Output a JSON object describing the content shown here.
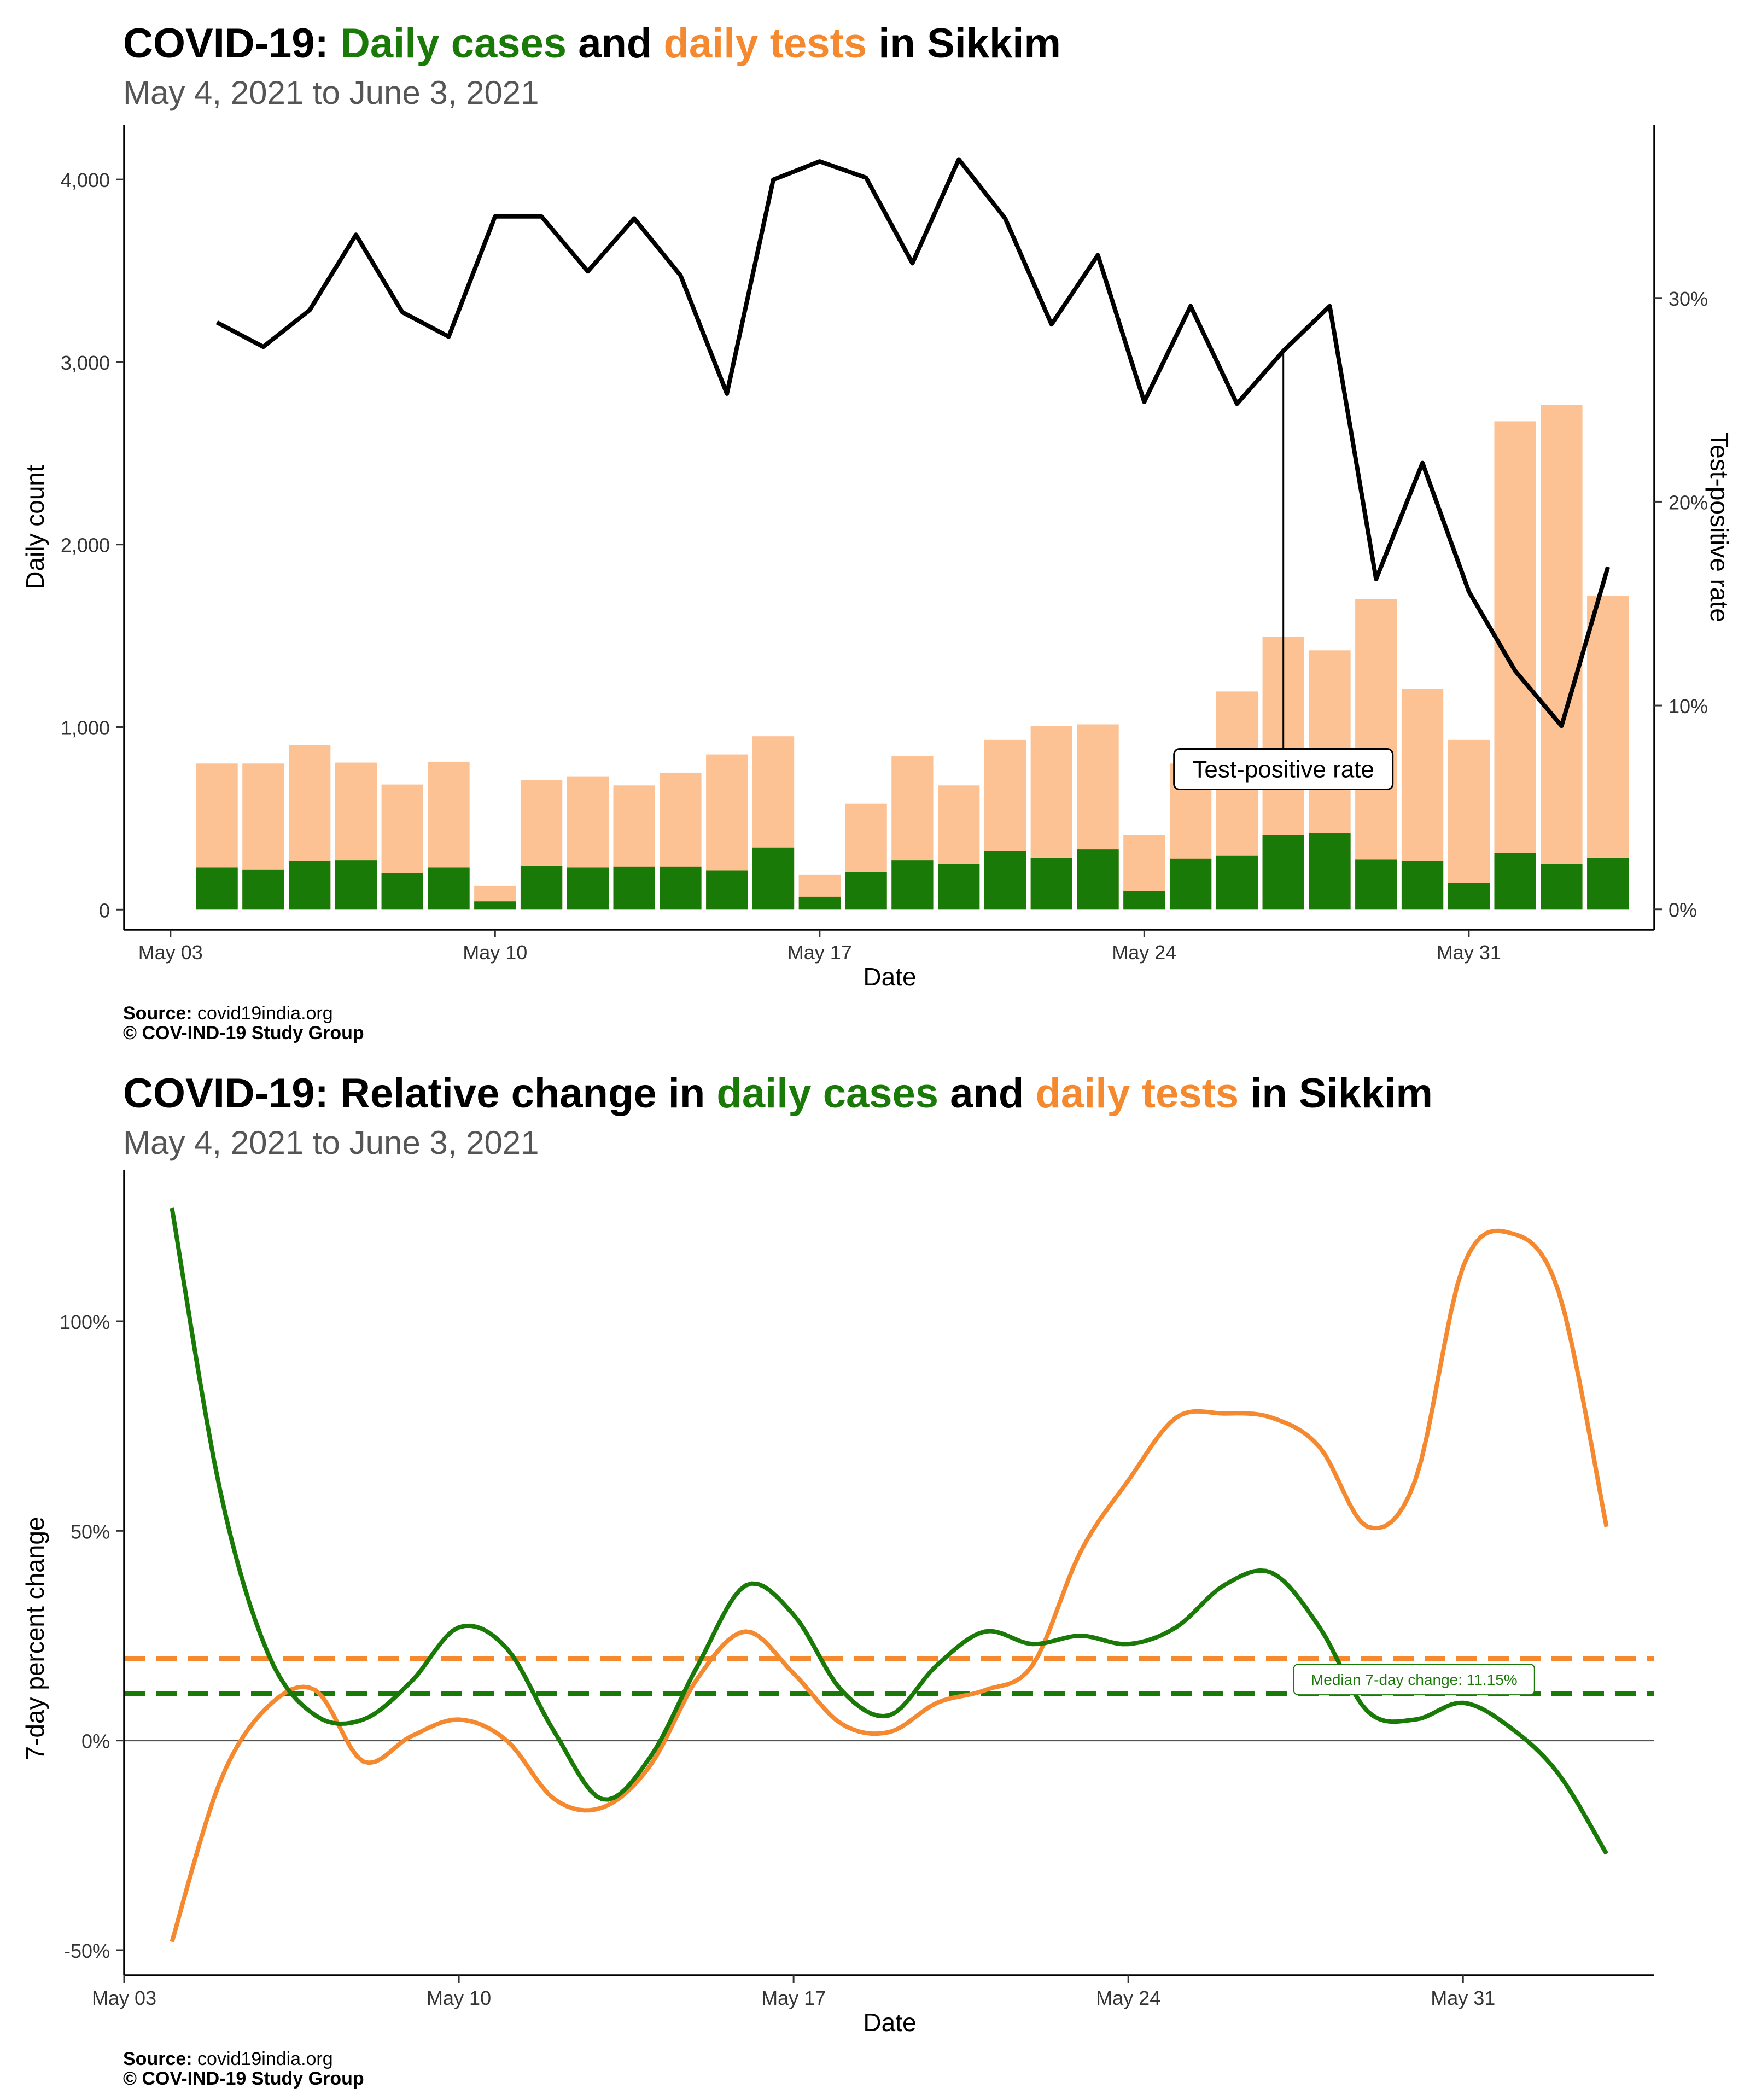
{
  "colors": {
    "cases": "#1a7a08",
    "tests": "#fcc294",
    "tests_line": "#f4892f",
    "tpr": "#000000",
    "subtitle": "#555555"
  },
  "panel1": {
    "title_prefix": "COVID-19: ",
    "title_cases": "Daily cases",
    "title_and": " and ",
    "title_tests": "daily tests",
    "title_suffix": " in Sikkim",
    "subtitle": "May  4, 2021 to June  3, 2021",
    "source_label": "Source:",
    "source_value": " covid19india.org",
    "copyright": "© COV-IND-19 Study Group"
  },
  "panel2": {
    "title_prefix": "COVID-19: Relative change in ",
    "title_cases": "daily cases",
    "title_and": " and ",
    "title_tests": "daily tests",
    "title_suffix": " in Sikkim",
    "subtitle": "May  4, 2021 to June  3, 2021",
    "source_label": "Source:",
    "source_value": " covid19india.org",
    "copyright": "© COV-IND-19 Study Group"
  },
  "chart_data": [
    {
      "type": "bar",
      "subtype": "stacked bar + line (dual axis)",
      "x_axis": {
        "label": "Date",
        "ticks": [
          "May 03",
          "May 10",
          "May 17",
          "May 24",
          "May 31"
        ],
        "tick_dates": [
          "2021-05-03",
          "2021-05-10",
          "2021-05-17",
          "2021-05-24",
          "2021-05-31"
        ],
        "range": [
          "2021-05-02",
          "2021-06-04"
        ]
      },
      "y_axis_left": {
        "label": "Daily count",
        "ticks": [
          "0",
          "1,000",
          "2,000",
          "3,000",
          "4,000"
        ],
        "tick_values": [
          0,
          1000,
          2000,
          3000,
          4000
        ],
        "range": [
          -110,
          4300
        ]
      },
      "y_axis_right": {
        "label": "Test-positive rate",
        "ticks": [
          "0%",
          "10%",
          "20%",
          "30%"
        ],
        "tick_values": [
          0,
          10,
          20,
          30
        ],
        "range": [
          -1,
          38.5
        ]
      },
      "dates": [
        "2021-05-04",
        "2021-05-05",
        "2021-05-06",
        "2021-05-07",
        "2021-05-08",
        "2021-05-09",
        "2021-05-10",
        "2021-05-11",
        "2021-05-12",
        "2021-05-13",
        "2021-05-14",
        "2021-05-15",
        "2021-05-16",
        "2021-05-17",
        "2021-05-18",
        "2021-05-19",
        "2021-05-20",
        "2021-05-21",
        "2021-05-22",
        "2021-05-23",
        "2021-05-24",
        "2021-05-25",
        "2021-05-26",
        "2021-05-27",
        "2021-05-28",
        "2021-05-29",
        "2021-05-30",
        "2021-05-31",
        "2021-06-01",
        "2021-06-02",
        "2021-06-03"
      ],
      "series": [
        {
          "name": "daily tests",
          "kind": "bar",
          "values": [
            800,
            800,
            900,
            805,
            685,
            810,
            130,
            710,
            730,
            680,
            750,
            850,
            950,
            190,
            580,
            840,
            680,
            930,
            1005,
            1015,
            410,
            800,
            1195,
            1495,
            1420,
            1700,
            1210,
            930,
            2675,
            2765,
            1720
          ]
        },
        {
          "name": "daily cases",
          "kind": "bar",
          "values": [
            230,
            220,
            265,
            270,
            200,
            230,
            45,
            240,
            230,
            235,
            235,
            215,
            340,
            70,
            205,
            270,
            250,
            320,
            285,
            330,
            100,
            280,
            295,
            410,
            420,
            275,
            265,
            145,
            310,
            250,
            285
          ]
        },
        {
          "name": "Test-positive rate",
          "kind": "line",
          "axis": "right",
          "unit": "%",
          "values": [
            28.8,
            27.6,
            29.4,
            33.1,
            29.3,
            28.1,
            34.0,
            34.0,
            31.3,
            33.9,
            31.1,
            25.3,
            35.8,
            36.7,
            35.9,
            31.7,
            36.8,
            33.9,
            28.7,
            32.1,
            24.9,
            29.6,
            24.8,
            27.4,
            29.6,
            16.2,
            21.9,
            15.6,
            11.7,
            9.0,
            16.8
          ]
        }
      ],
      "annotations": [
        {
          "text": "Test-positive rate",
          "date": "2021-05-27"
        }
      ]
    },
    {
      "type": "line",
      "x_axis": {
        "label": "Date",
        "ticks": [
          "May 03",
          "May 10",
          "May 17",
          "May 24",
          "May 31"
        ],
        "tick_dates": [
          "2021-05-03",
          "2021-05-10",
          "2021-05-17",
          "2021-05-24",
          "2021-05-31"
        ],
        "range": [
          "2021-05-03",
          "2021-06-04"
        ]
      },
      "y_axis": {
        "label": "7-day percent change",
        "ticks": [
          "-50%",
          "0%",
          "50%",
          "100%"
        ],
        "tick_values": [
          -50,
          0,
          50,
          100
        ],
        "range": [
          -56,
          136
        ]
      },
      "dates": [
        "2021-05-04",
        "2021-05-05",
        "2021-05-06",
        "2021-05-07",
        "2021-05-08",
        "2021-05-09",
        "2021-05-10",
        "2021-05-11",
        "2021-05-12",
        "2021-05-13",
        "2021-05-14",
        "2021-05-15",
        "2021-05-16",
        "2021-05-17",
        "2021-05-18",
        "2021-05-19",
        "2021-05-20",
        "2021-05-21",
        "2021-05-22",
        "2021-05-23",
        "2021-05-24",
        "2021-05-25",
        "2021-05-26",
        "2021-05-27",
        "2021-05-28",
        "2021-05-29",
        "2021-05-30",
        "2021-05-31",
        "2021-06-01",
        "2021-06-02",
        "2021-06-03"
      ],
      "series": [
        {
          "name": "daily cases",
          "values": [
            127,
            60,
            21,
            6,
            5,
            14,
            27,
            22,
            2,
            -14,
            -4,
            18,
            37,
            30,
            12,
            6,
            18,
            26,
            23,
            25,
            23,
            27,
            37,
            40,
            27,
            7,
            5,
            9,
            3,
            -8,
            -27
          ]
        },
        {
          "name": "daily tests",
          "values": [
            -48,
            -10,
            8,
            12,
            -5,
            1,
            5,
            0,
            -14,
            -16,
            -6,
            15,
            26,
            16,
            4,
            2,
            9,
            12,
            18,
            45,
            62,
            77,
            78,
            77,
            70,
            51,
            62,
            113,
            121,
            107,
            51
          ]
        }
      ],
      "reference_lines": [
        {
          "series": "daily tests",
          "value": 19.5,
          "style": "dashed"
        },
        {
          "series": "daily cases",
          "value": 11.15,
          "style": "dashed"
        },
        {
          "value": 0,
          "style": "solid"
        }
      ],
      "annotations": [
        {
          "text": "Median 7-day change: 11.15%",
          "series": "daily cases"
        }
      ]
    }
  ]
}
